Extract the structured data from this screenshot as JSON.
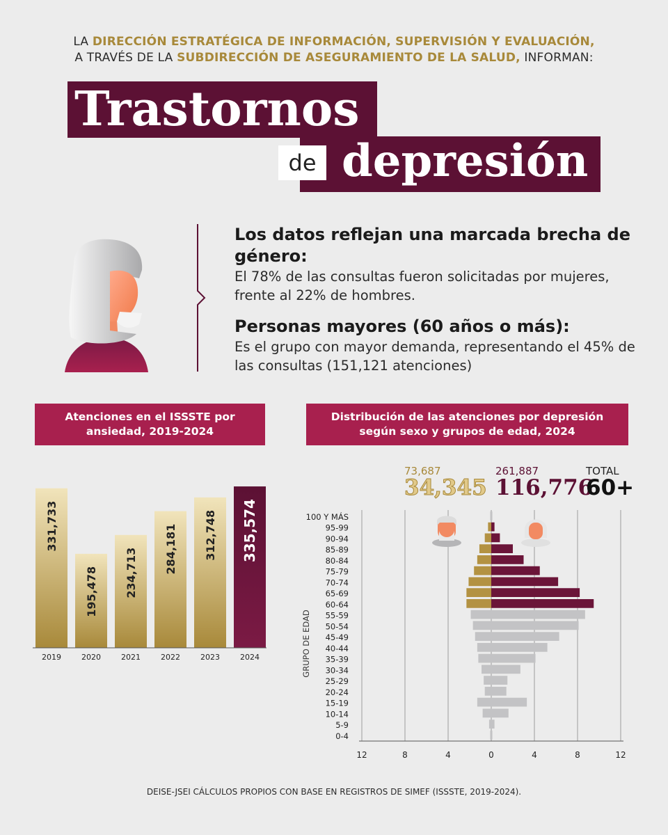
{
  "header": {
    "line1_pre": "LA ",
    "line1_bold": "DIRECCIÓN ESTRATÉGICA DE INFORMACIÓN, SUPERVISIÓN Y EVALUACIÓN,",
    "line2_pre": "A TRAVÉS DE LA ",
    "line2_bold": "SUBDIRECCIÓN DE ASEGURAMIENTO DE LA SALUD,",
    "line2_post": " INFORMAN:"
  },
  "title": {
    "word1": "Trastornos",
    "word2": "de",
    "word3": "depresión"
  },
  "info": {
    "heading1": "Los datos reflejan una marcada brecha de género:",
    "text1": "El 78% de las consultas fueron solicitadas por mujeres, frente al 22% de hombres.",
    "heading2": "Personas mayores (60 años o más):",
    "text2": "Es el grupo con mayor demanda, representando el 45% de las consultas (151,121 atenciones)"
  },
  "colors": {
    "gold": "#a8893a",
    "maroon": "#5c1134",
    "magenta": "#a8204e",
    "grey_bar": "#c3c3c5"
  },
  "chart_data": [
    {
      "type": "bar",
      "title": "Atenciones en el ISSSTE por ansiedad, 2019-2024",
      "categories": [
        "2019",
        "2020",
        "2021",
        "2022",
        "2023",
        "2024"
      ],
      "values": [
        331733,
        195478,
        234713,
        284181,
        312748,
        335574
      ],
      "value_labels": [
        "331,733",
        "195,478",
        "234,713",
        "284,181",
        "312,748",
        "335,574"
      ],
      "highlight": "2024"
    },
    {
      "type": "bar",
      "orientation": "horizontal-pyramid",
      "title": "Distribución de las atenciones por depresión según sexo y grupos de edad, 2024",
      "ylabel": "GRUPO DE EDAD",
      "categories": [
        "100 Y MÁS",
        "95-99",
        "90-94",
        "85-89",
        "80-84",
        "75-79",
        "70-74",
        "65-69",
        "60-64",
        "55-59",
        "50-54",
        "45-49",
        "40-44",
        "35-39",
        "30-34",
        "25-29",
        "20-24",
        "15-19",
        "10-14",
        "5-9",
        "0-4"
      ],
      "series": [
        {
          "side": "left",
          "values": [
            0.1,
            0.3,
            0.6,
            1.1,
            1.3,
            1.6,
            2.1,
            2.3,
            2.3,
            1.9,
            1.7,
            1.5,
            1.3,
            1.2,
            0.9,
            0.7,
            0.6,
            1.3,
            0.8,
            0.2,
            0.1
          ]
        },
        {
          "side": "right",
          "values": [
            0.1,
            0.3,
            0.8,
            2.0,
            3.0,
            4.5,
            6.2,
            8.2,
            9.5,
            8.7,
            8.1,
            6.3,
            5.2,
            4.1,
            2.7,
            1.5,
            1.4,
            3.3,
            1.6,
            0.3,
            0.1
          ]
        }
      ],
      "x_ticks": [
        "12",
        "8",
        "4",
        "0",
        "4",
        "8",
        "12"
      ],
      "xlim": [
        -12,
        12
      ],
      "totals": {
        "men_total": "73,687",
        "men_60plus": "34,345",
        "women_total": "261,887",
        "women_60plus": "116,776",
        "total_label": "TOTAL",
        "group_label": "60+"
      }
    }
  ],
  "footer": "DEISE-JSEI CÁLCULOS PROPIOS CON BASE EN REGISTROS DE SIMEF (ISSSTE, 2019-2024)."
}
